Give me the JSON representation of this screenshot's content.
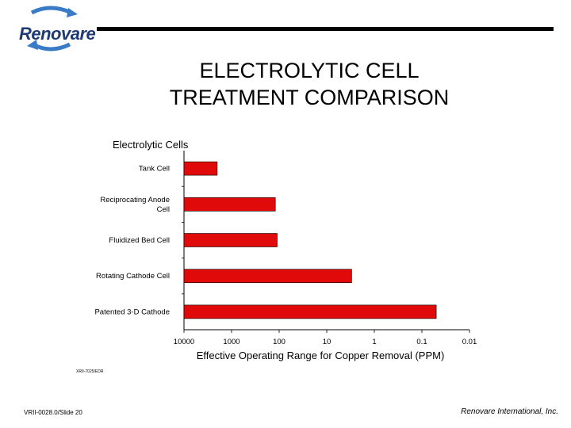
{
  "header": {
    "logo_text": "Renovare",
    "title_line1": "ELECTROLYTIC CELL",
    "title_line2": "TREATMENT COMPARISON"
  },
  "chart_data": {
    "type": "bar",
    "orientation": "horizontal",
    "title": "Electrolytic Cells",
    "xlabel": "Effective Operating Range for Copper Removal (PPM)",
    "x_scale": "log",
    "x_reversed": true,
    "xlim": [
      10000,
      0.01
    ],
    "x_ticks": [
      10000,
      1000,
      100,
      10,
      1,
      0.1,
      0.01
    ],
    "x_tick_labels": [
      "10000",
      "1000",
      "100",
      "10",
      "1",
      "0.1",
      "0.01"
    ],
    "categories": [
      "Tank Cell",
      "Reciprocating Anode Cell",
      "Fluidized Bed Cell",
      "Rotating Cathode Cell",
      "Patented 3-D Cathode"
    ],
    "category_lines": [
      [
        "Tank Cell"
      ],
      [
        "Reciprocating Anode",
        "Cell"
      ],
      [
        "Fluidized Bed Cell"
      ],
      [
        "Rotating Cathode Cell"
      ],
      [
        "Patented 3-D Cathode"
      ]
    ],
    "values": [
      2000,
      120,
      110,
      3,
      0.05
    ],
    "bar_color": "#e10a0a",
    "grid": false,
    "legend": "none",
    "annotation": "XRII-7025/EDR"
  },
  "footer": {
    "left": "VRII-0028.0/Slide 20",
    "right": "Renovare International, Inc."
  }
}
